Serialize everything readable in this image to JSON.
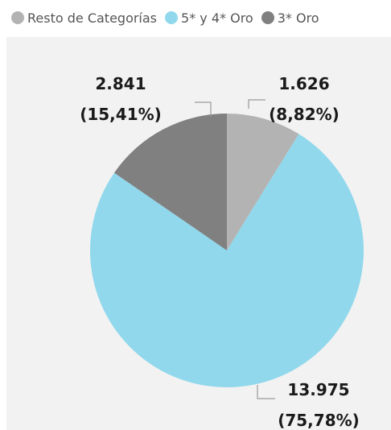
{
  "chart_data": {
    "type": "pie",
    "legend": {
      "placement": "top-left",
      "entries": [
        {
          "name": "Resto de Categorías",
          "color": "#b3b3b3"
        },
        {
          "name": "5* y 4* Oro",
          "color": "#91d8ec"
        },
        {
          "name": "3* Oro",
          "color": "#808080"
        }
      ]
    },
    "slices": [
      {
        "name": "Resto de Categorías",
        "value": 1626,
        "value_label": "1.626",
        "percent_label": "(8,82%)",
        "percent": 8.82,
        "color": "#b3b3b3"
      },
      {
        "name": "5* y 4* Oro",
        "value": 13975,
        "value_label": "13.975",
        "percent_label": "(75,78%)",
        "percent": 75.78,
        "color": "#91d8ec"
      },
      {
        "name": "3* Oro",
        "value": 2841,
        "value_label": "2.841",
        "percent_label": "(15,41%)",
        "percent": 15.41,
        "color": "#808080"
      }
    ],
    "start_angle_deg": 0,
    "direction": "clockwise"
  }
}
